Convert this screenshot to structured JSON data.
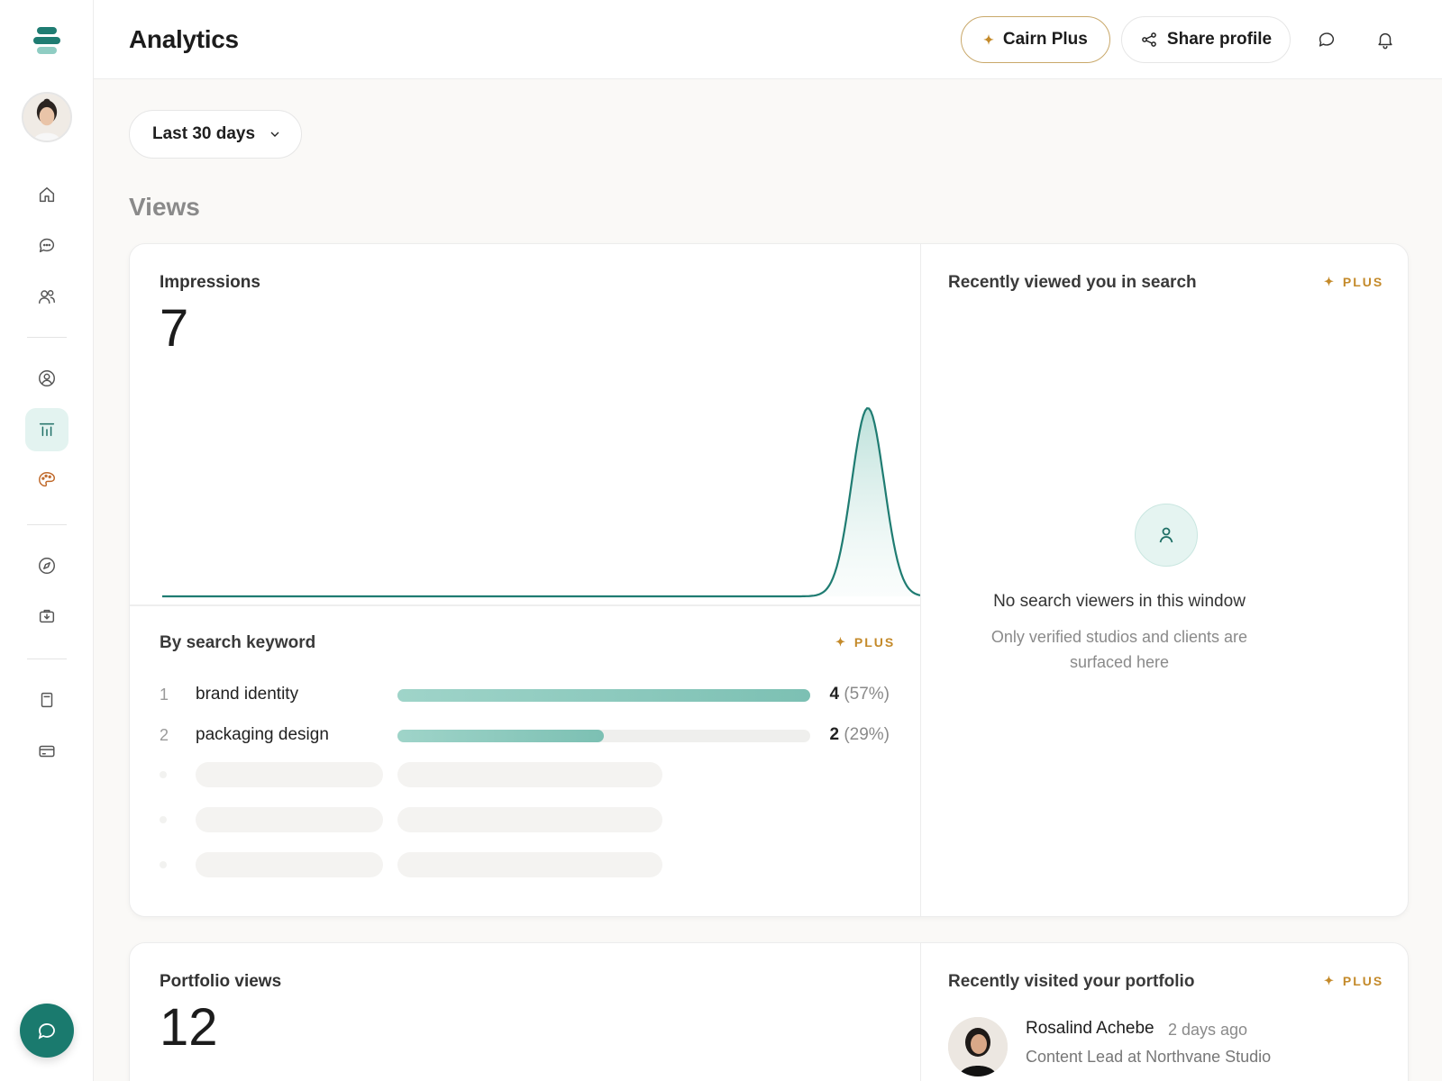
{
  "header": {
    "title": "Analytics",
    "plus_button": "Cairn Plus",
    "share_button": "Share profile"
  },
  "filters": {
    "range_label": "Last 30 days"
  },
  "views_section": {
    "title": "Views"
  },
  "impressions": {
    "label": "Impressions",
    "value": "7"
  },
  "chart_data": {
    "type": "area",
    "title": "",
    "x": [
      1,
      2,
      3,
      4,
      5,
      6,
      7,
      8,
      9,
      10,
      11,
      12,
      13,
      14,
      15,
      16,
      17,
      18,
      19,
      20,
      21,
      22,
      23,
      24,
      25,
      26,
      27,
      28,
      29,
      30
    ],
    "series": [
      {
        "values": [
          0,
          0,
          0,
          0,
          0,
          0,
          0,
          0,
          0,
          0,
          0,
          0,
          0,
          0,
          0,
          0,
          0,
          0,
          0,
          0,
          0,
          0,
          0,
          0,
          0,
          0,
          0,
          7,
          0,
          0
        ]
      }
    ],
    "grid": false,
    "color": "#1f7c72"
  },
  "keywords": {
    "title": "By search keyword",
    "plus_tag": "PLUS",
    "items": [
      {
        "rank": "1",
        "name": "brand identity",
        "count": "4",
        "pct": "(57%)",
        "fraction": 1.0
      },
      {
        "rank": "2",
        "name": "packaging design",
        "count": "2",
        "pct": "(29%)",
        "fraction": 0.5
      }
    ]
  },
  "search_viewers": {
    "title": "Recently viewed you in search",
    "plus_tag": "PLUS",
    "empty_title": "No search viewers in this window",
    "empty_sub": "Only verified studios and clients are surfaced here"
  },
  "portfolio": {
    "label": "Portfolio views",
    "value": "12"
  },
  "portfolio_visitors": {
    "title": "Recently visited your portfolio",
    "plus_tag": "PLUS",
    "items": [
      {
        "name": "Rosalind Achebe",
        "time": "2 days ago",
        "role": "Content Lead at Northvane Studio"
      }
    ]
  },
  "colors": {
    "accent": "#1f7c72",
    "plus": "#c48a2a"
  },
  "icons": {
    "sidebar": [
      "home-icon",
      "messages-icon",
      "people-icon",
      "profile-icon",
      "analytics-icon",
      "palette-icon",
      "compass-icon",
      "briefcase-icon",
      "document-icon",
      "card-icon"
    ],
    "header": [
      "chat-icon",
      "bell-icon"
    ]
  }
}
